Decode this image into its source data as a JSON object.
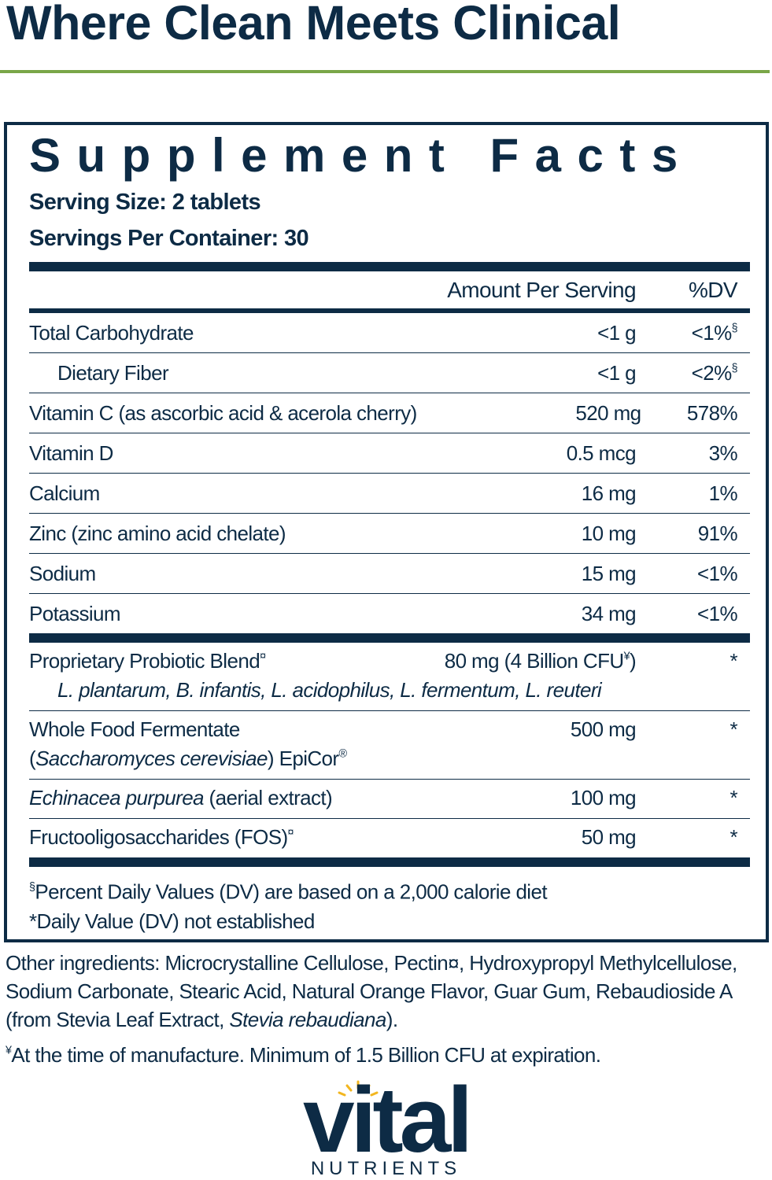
{
  "header": {
    "title": "Where Clean Meets Clinical"
  },
  "facts": {
    "title": "Supplement Facts",
    "serving_size": "Serving Size: 2 tablets",
    "servings_per_container": "Servings Per Container: 30",
    "columns": {
      "amount": "Amount Per Serving",
      "dv": "%DV"
    },
    "nutrients": [
      {
        "name": "Total Carbohydrate",
        "amount": "<1 g",
        "dv": [
          "<1%",
          {
            "text": "§",
            "style": "sup"
          }
        ]
      },
      {
        "name": "Dietary Fiber",
        "indent": true,
        "amount": "<1 g",
        "dv": [
          "<2%",
          {
            "text": "§",
            "style": "sup"
          }
        ]
      },
      {
        "name": "Vitamin C (as ascorbic acid & acerola cherry)",
        "amount": "520 mg",
        "dv": "578%"
      },
      {
        "name": "Vitamin D",
        "amount": "0.5 mcg",
        "dv": "3%"
      },
      {
        "name": "Calcium",
        "amount": "16 mg",
        "dv": "1%"
      },
      {
        "name": "Zinc (zinc amino acid chelate)",
        "amount": "10 mg",
        "dv": "91%"
      },
      {
        "name": "Sodium",
        "amount": "15 mg",
        "dv": "<1%"
      },
      {
        "name": "Potassium",
        "amount": "34 mg",
        "dv": "<1%"
      }
    ],
    "blend": [
      {
        "name": [
          "Proprietary Probiotic Blend",
          {
            "text": "¤",
            "style": "sup"
          }
        ],
        "amount": [
          "80 mg (4 Billion CFU",
          {
            "text": "¥",
            "style": "sup"
          },
          ")"
        ],
        "dv": "*",
        "detail": [
          {
            "text": "L. plantarum, B. infantis, L. acidophilus, L. fermentum, L. reuteri",
            "style": "italic"
          }
        ],
        "indent": true
      },
      {
        "name": "Whole Food Fermentate",
        "amount": "500 mg",
        "dv": "*",
        "detail": [
          "(",
          {
            "text": "Saccharomyces cerevisiae",
            "style": "italic"
          },
          ") EpiCor",
          {
            "text": "®",
            "style": "sup"
          }
        ]
      },
      {
        "name": [
          {
            "text": "Echinacea purpurea",
            "style": "italic"
          },
          " (aerial extract)"
        ],
        "amount": "100 mg",
        "dv": "*"
      },
      {
        "name": [
          "Fructooligosaccharides (FOS)",
          {
            "text": "¤",
            "style": "sup"
          }
        ],
        "amount": "50 mg",
        "dv": "*"
      }
    ],
    "footnotes": [
      [
        {
          "text": "§",
          "style": "sup"
        },
        "Percent Daily Values (DV) are based on a 2,000 calorie diet"
      ],
      "*Daily Value (DV) not established"
    ]
  },
  "other_ingredients": [
    "Other ingredients: Microcrystalline Cellulose, Pectin¤, Hydroxypropyl Methylcellulose, Sodium Carbonate, Stearic Acid, Natural Orange Flavor, Guar Gum, Rebaudioside A (from Stevia Leaf Extract, ",
    {
      "text": "Stevia rebaudiana",
      "style": "italic"
    },
    ")."
  ],
  "manufacture_note": [
    {
      "text": "¥",
      "style": "sup"
    },
    "At the time of manufacture. Minimum of 1.5 Billion CFU at expiration."
  ],
  "brand": {
    "name": "vital",
    "tagline": "NUTRIENTS"
  }
}
